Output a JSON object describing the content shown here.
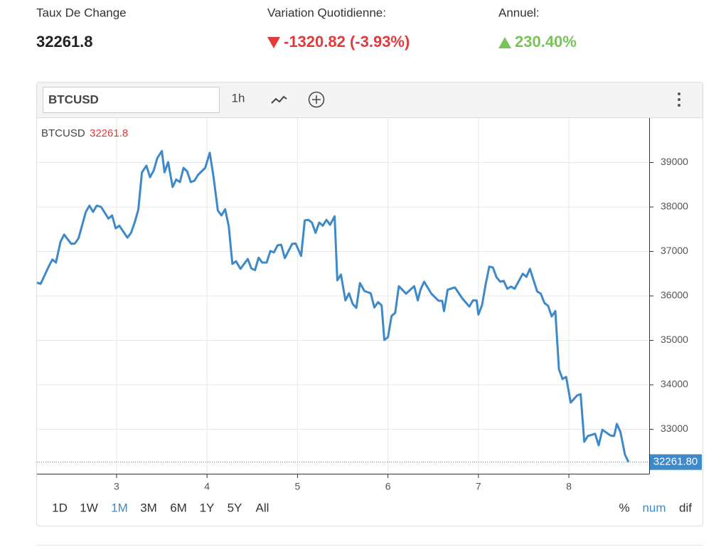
{
  "header": {
    "stats": [
      {
        "label": "Taux De Change",
        "value": "32261.8"
      },
      {
        "label": "Variation Quotidienne:",
        "value": "-1320.82 (-3.93%)"
      },
      {
        "label": "Annuel:",
        "value": "230.40%"
      }
    ]
  },
  "toolbar": {
    "symbol": "BTCUSD",
    "interval": "1h"
  },
  "chart_data": {
    "type": "line",
    "legend": {
      "symbol": "BTCUSD",
      "price": "32261.8"
    },
    "color": "#3d89c9",
    "x": [
      2.12,
      2.16,
      2.25,
      2.29,
      2.33,
      2.38,
      2.42,
      2.5,
      2.54,
      2.58,
      2.66,
      2.7,
      2.74,
      2.78,
      2.83,
      2.91,
      2.95,
      2.99,
      3.03,
      3.12,
      3.16,
      3.2,
      3.24,
      3.28,
      3.33,
      3.37,
      3.41,
      3.45,
      3.5,
      3.53,
      3.57,
      3.62,
      3.66,
      3.7,
      3.74,
      3.78,
      3.82,
      3.86,
      3.9,
      3.98,
      4.03,
      4.07,
      4.12,
      4.16,
      4.2,
      4.24,
      4.28,
      4.32,
      4.37,
      4.45,
      4.49,
      4.53,
      4.57,
      4.61,
      4.66,
      4.7,
      4.74,
      4.78,
      4.82,
      4.86,
      4.94,
      4.98,
      5.04,
      5.08,
      5.12,
      5.16,
      5.2,
      5.24,
      5.28,
      5.32,
      5.36,
      5.41,
      5.44,
      5.48,
      5.53,
      5.57,
      5.61,
      5.65,
      5.69,
      5.74,
      5.81,
      5.85,
      5.89,
      5.93,
      5.96,
      6.0,
      6.04,
      6.08,
      6.12,
      6.2,
      6.29,
      6.33,
      6.36,
      6.4,
      6.48,
      6.56,
      6.6,
      6.62,
      6.66,
      6.74,
      6.82,
      6.9,
      6.94,
      6.98,
      7.0,
      7.04,
      7.08,
      7.12,
      7.16,
      7.2,
      7.24,
      7.28,
      7.32,
      7.36,
      7.4,
      7.49,
      7.53,
      7.57,
      7.61,
      7.65,
      7.69,
      7.73,
      7.77,
      7.81,
      7.85,
      7.89,
      7.93,
      7.97,
      8.02,
      8.09,
      8.13,
      8.17,
      8.21,
      8.29,
      8.33,
      8.37,
      8.46,
      8.5,
      8.53,
      8.57,
      8.62,
      8.66
    ],
    "values": [
      36300,
      36270,
      36660,
      36820,
      36750,
      37220,
      37380,
      37170,
      37180,
      37300,
      37890,
      38030,
      37890,
      38030,
      38000,
      37740,
      37810,
      37520,
      37580,
      37310,
      37420,
      37650,
      37940,
      38780,
      38930,
      38670,
      38820,
      39100,
      39260,
      38780,
      39010,
      38450,
      38620,
      38560,
      38880,
      38800,
      38560,
      38590,
      38720,
      38880,
      39220,
      38700,
      37920,
      37810,
      37950,
      37570,
      36720,
      36780,
      36610,
      36830,
      36620,
      36580,
      36860,
      36750,
      36750,
      37010,
      36980,
      37140,
      37150,
      36850,
      37170,
      37180,
      36900,
      37700,
      37710,
      37650,
      37420,
      37650,
      37580,
      37710,
      37600,
      37790,
      36350,
      36480,
      35900,
      36060,
      35820,
      35730,
      36290,
      36110,
      36060,
      35740,
      35860,
      35790,
      35010,
      35070,
      35550,
      35620,
      36220,
      36050,
      36220,
      35900,
      36140,
      36320,
      36050,
      35890,
      35890,
      35660,
      36140,
      36190,
      35950,
      35760,
      35900,
      35900,
      35580,
      35790,
      36260,
      36660,
      36640,
      36420,
      36320,
      36340,
      36160,
      36210,
      36160,
      36500,
      36430,
      36610,
      36350,
      36100,
      36050,
      35840,
      35780,
      35540,
      35660,
      34350,
      34130,
      34180,
      33600,
      33760,
      33790,
      32720,
      32850,
      32900,
      32640,
      32990,
      32860,
      32850,
      33120,
      32940,
      32430,
      32261.8
    ],
    "xlim": [
      2.12,
      8.88
    ],
    "xticks": [
      3,
      4,
      5,
      6,
      7,
      8
    ],
    "ylim": [
      32000,
      40000
    ],
    "yticks": [
      33000,
      34000,
      35000,
      36000,
      37000,
      38000,
      39000
    ],
    "grid": true,
    "price_line": {
      "value": 32261.8,
      "label": "32261.80"
    }
  },
  "ranges": {
    "items": [
      "1D",
      "1W",
      "1M",
      "3M",
      "6M",
      "1Y",
      "5Y",
      "All"
    ],
    "active": 2
  },
  "scales": {
    "items": [
      "%",
      "num",
      "dif"
    ],
    "active": 1
  }
}
